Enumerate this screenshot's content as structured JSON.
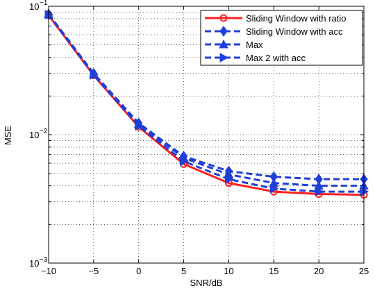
{
  "chart_data": {
    "type": "line",
    "title": "",
    "xlabel": "SNR/dB",
    "ylabel": "MSE",
    "y_scale": "log",
    "xlim": [
      -10,
      25
    ],
    "ylim": [
      0.001,
      0.1
    ],
    "grid": true,
    "grid_style": "dotted",
    "legend_position": "top-right",
    "x_ticks": [
      -10,
      -5,
      0,
      5,
      10,
      15,
      20,
      25
    ],
    "x_tick_labels": [
      "−10",
      "−5",
      "0",
      "5",
      "10",
      "15",
      "20",
      "25"
    ],
    "y_ticks": [
      0.001,
      0.01,
      0.1
    ],
    "y_tick_labels": [
      {
        "base": "10",
        "exp": "−3"
      },
      {
        "base": "10",
        "exp": "−2"
      },
      {
        "base": "10",
        "exp": "−1"
      }
    ],
    "x": [
      -10,
      -5,
      0,
      5,
      10,
      15,
      20,
      25
    ],
    "series": [
      {
        "name": "Sliding Window with ratio",
        "color": "#ff2020",
        "line_style": "solid",
        "marker": "circle",
        "values": [
          0.085,
          0.029,
          0.0115,
          0.0059,
          0.0042,
          0.0036,
          0.00345,
          0.0034
        ]
      },
      {
        "name": "Sliding Window with acc",
        "color": "#1f3fd8",
        "line_style": "dashed",
        "marker": "diamond",
        "values": [
          0.087,
          0.03,
          0.0123,
          0.0068,
          0.0052,
          0.0047,
          0.0045,
          0.0045
        ]
      },
      {
        "name": "Max",
        "color": "#1f3fd8",
        "line_style": "dashed",
        "marker": "triangle-up",
        "values": [
          0.087,
          0.0295,
          0.0121,
          0.0066,
          0.0049,
          0.0042,
          0.004,
          0.004
        ]
      },
      {
        "name": "Max 2 with acc",
        "color": "#1f3fd8",
        "line_style": "dashed",
        "marker": "triangle-right",
        "values": [
          0.086,
          0.0292,
          0.0117,
          0.0062,
          0.0045,
          0.0038,
          0.0036,
          0.0036
        ]
      }
    ]
  }
}
